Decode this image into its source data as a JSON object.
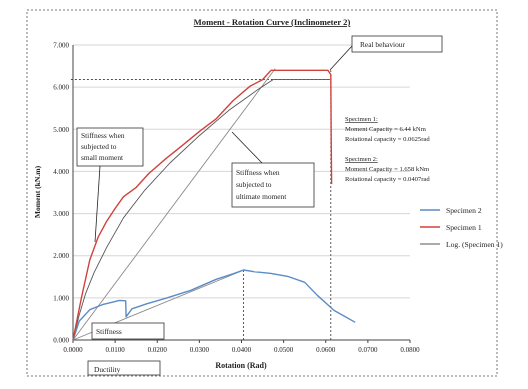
{
  "chart_data": {
    "type": "line",
    "title": "Moment - Rotation Curve (Inclinometer 2)",
    "xlabel": "Rotation (Rad)",
    "ylabel": "Moment (kN.m)",
    "xlim": [
      0,
      0.08
    ],
    "ylim": [
      0,
      7
    ],
    "x_ticks": [
      "0.0000",
      "0.0100",
      "0.0200",
      "0.0300",
      "0.0400",
      "0.0500",
      "0.0600",
      "0.0700",
      "0.0800"
    ],
    "y_ticks": [
      "0.000",
      "1.000",
      "2.000",
      "3.000",
      "4.000",
      "5.000",
      "6.000",
      "7.000"
    ],
    "grid": "horizontal",
    "legend_position": "right",
    "series": [
      {
        "name": "Specimen 2",
        "color": "#5b8cc6",
        "x": [
          0,
          0.0015,
          0.004,
          0.007,
          0.0095,
          0.011,
          0.0125,
          0.0126,
          0.014,
          0.0175,
          0.022,
          0.028,
          0.034,
          0.038,
          0.0405,
          0.043,
          0.047,
          0.051,
          0.055,
          0.058,
          0.062,
          0.067
        ],
        "y": [
          0,
          0.45,
          0.72,
          0.84,
          0.9,
          0.94,
          0.93,
          0.55,
          0.74,
          0.86,
          0.99,
          1.18,
          1.44,
          1.57,
          1.66,
          1.62,
          1.58,
          1.51,
          1.37,
          1.06,
          0.7,
          0.42
        ]
      },
      {
        "name": "Specimen 1",
        "color": "#d0413c",
        "x": [
          0,
          0.002,
          0.004,
          0.006,
          0.008,
          0.01,
          0.012,
          0.015,
          0.018,
          0.022,
          0.026,
          0.03,
          0.034,
          0.038,
          0.042,
          0.045,
          0.047,
          0.0515,
          0.055,
          0.058,
          0.0605,
          0.0612,
          0.0613,
          0.0614
        ],
        "y": [
          0,
          1.0,
          1.9,
          2.45,
          2.82,
          3.12,
          3.4,
          3.62,
          3.95,
          4.3,
          4.62,
          4.95,
          5.25,
          5.68,
          6.02,
          6.18,
          6.4,
          6.4,
          6.4,
          6.4,
          6.4,
          6.3,
          4.8,
          3.7
        ]
      },
      {
        "name": "Log. (Specimen 1)",
        "color": "#555555",
        "x": [
          0,
          0.0015,
          0.003,
          0.005,
          0.008,
          0.012,
          0.017,
          0.023,
          0.03,
          0.037,
          0.044,
          0.0475,
          0.061
        ],
        "y": [
          0,
          0.6,
          1.1,
          1.6,
          2.2,
          2.9,
          3.55,
          4.2,
          4.85,
          5.45,
          5.95,
          6.18,
          6.18
        ]
      }
    ],
    "reference_lines": [
      {
        "x": [
          0,
          0.048
        ],
        "y": [
          0,
          6.44
        ]
      },
      {
        "x": [
          0,
          0.0405
        ],
        "y": [
          0,
          1.658
        ]
      }
    ],
    "guide_lines": [
      {
        "x": [
          -0.0005,
          0.0612
        ],
        "y": [
          6.18,
          6.18
        ]
      },
      {
        "x": [
          0.0405,
          0.0405
        ],
        "y": [
          0,
          1.66
        ]
      },
      {
        "x": [
          0.0612,
          0.0612
        ],
        "y": [
          0,
          6.4
        ]
      }
    ],
    "annotations": {
      "real_behaviour": "Real behaviour",
      "stiffness_small": [
        "Stiffness when",
        "subjected to",
        "small moment"
      ],
      "stiffness_ultimate": [
        "Stiffness when",
        "subjected to",
        "ultimate moment"
      ],
      "stiffness": "Stiffness",
      "ductility": "Ductility",
      "specimen1_block": [
        "Specimen 1:",
        "Moment Capacity = 6.44 kNm",
        "Rotational capacity = 0.0625rad"
      ],
      "specimen2_block": [
        "Specimen 2:",
        "Moment Capacity = 1.658 kNm",
        "Rotational capacity = 0.0407rad"
      ]
    }
  }
}
